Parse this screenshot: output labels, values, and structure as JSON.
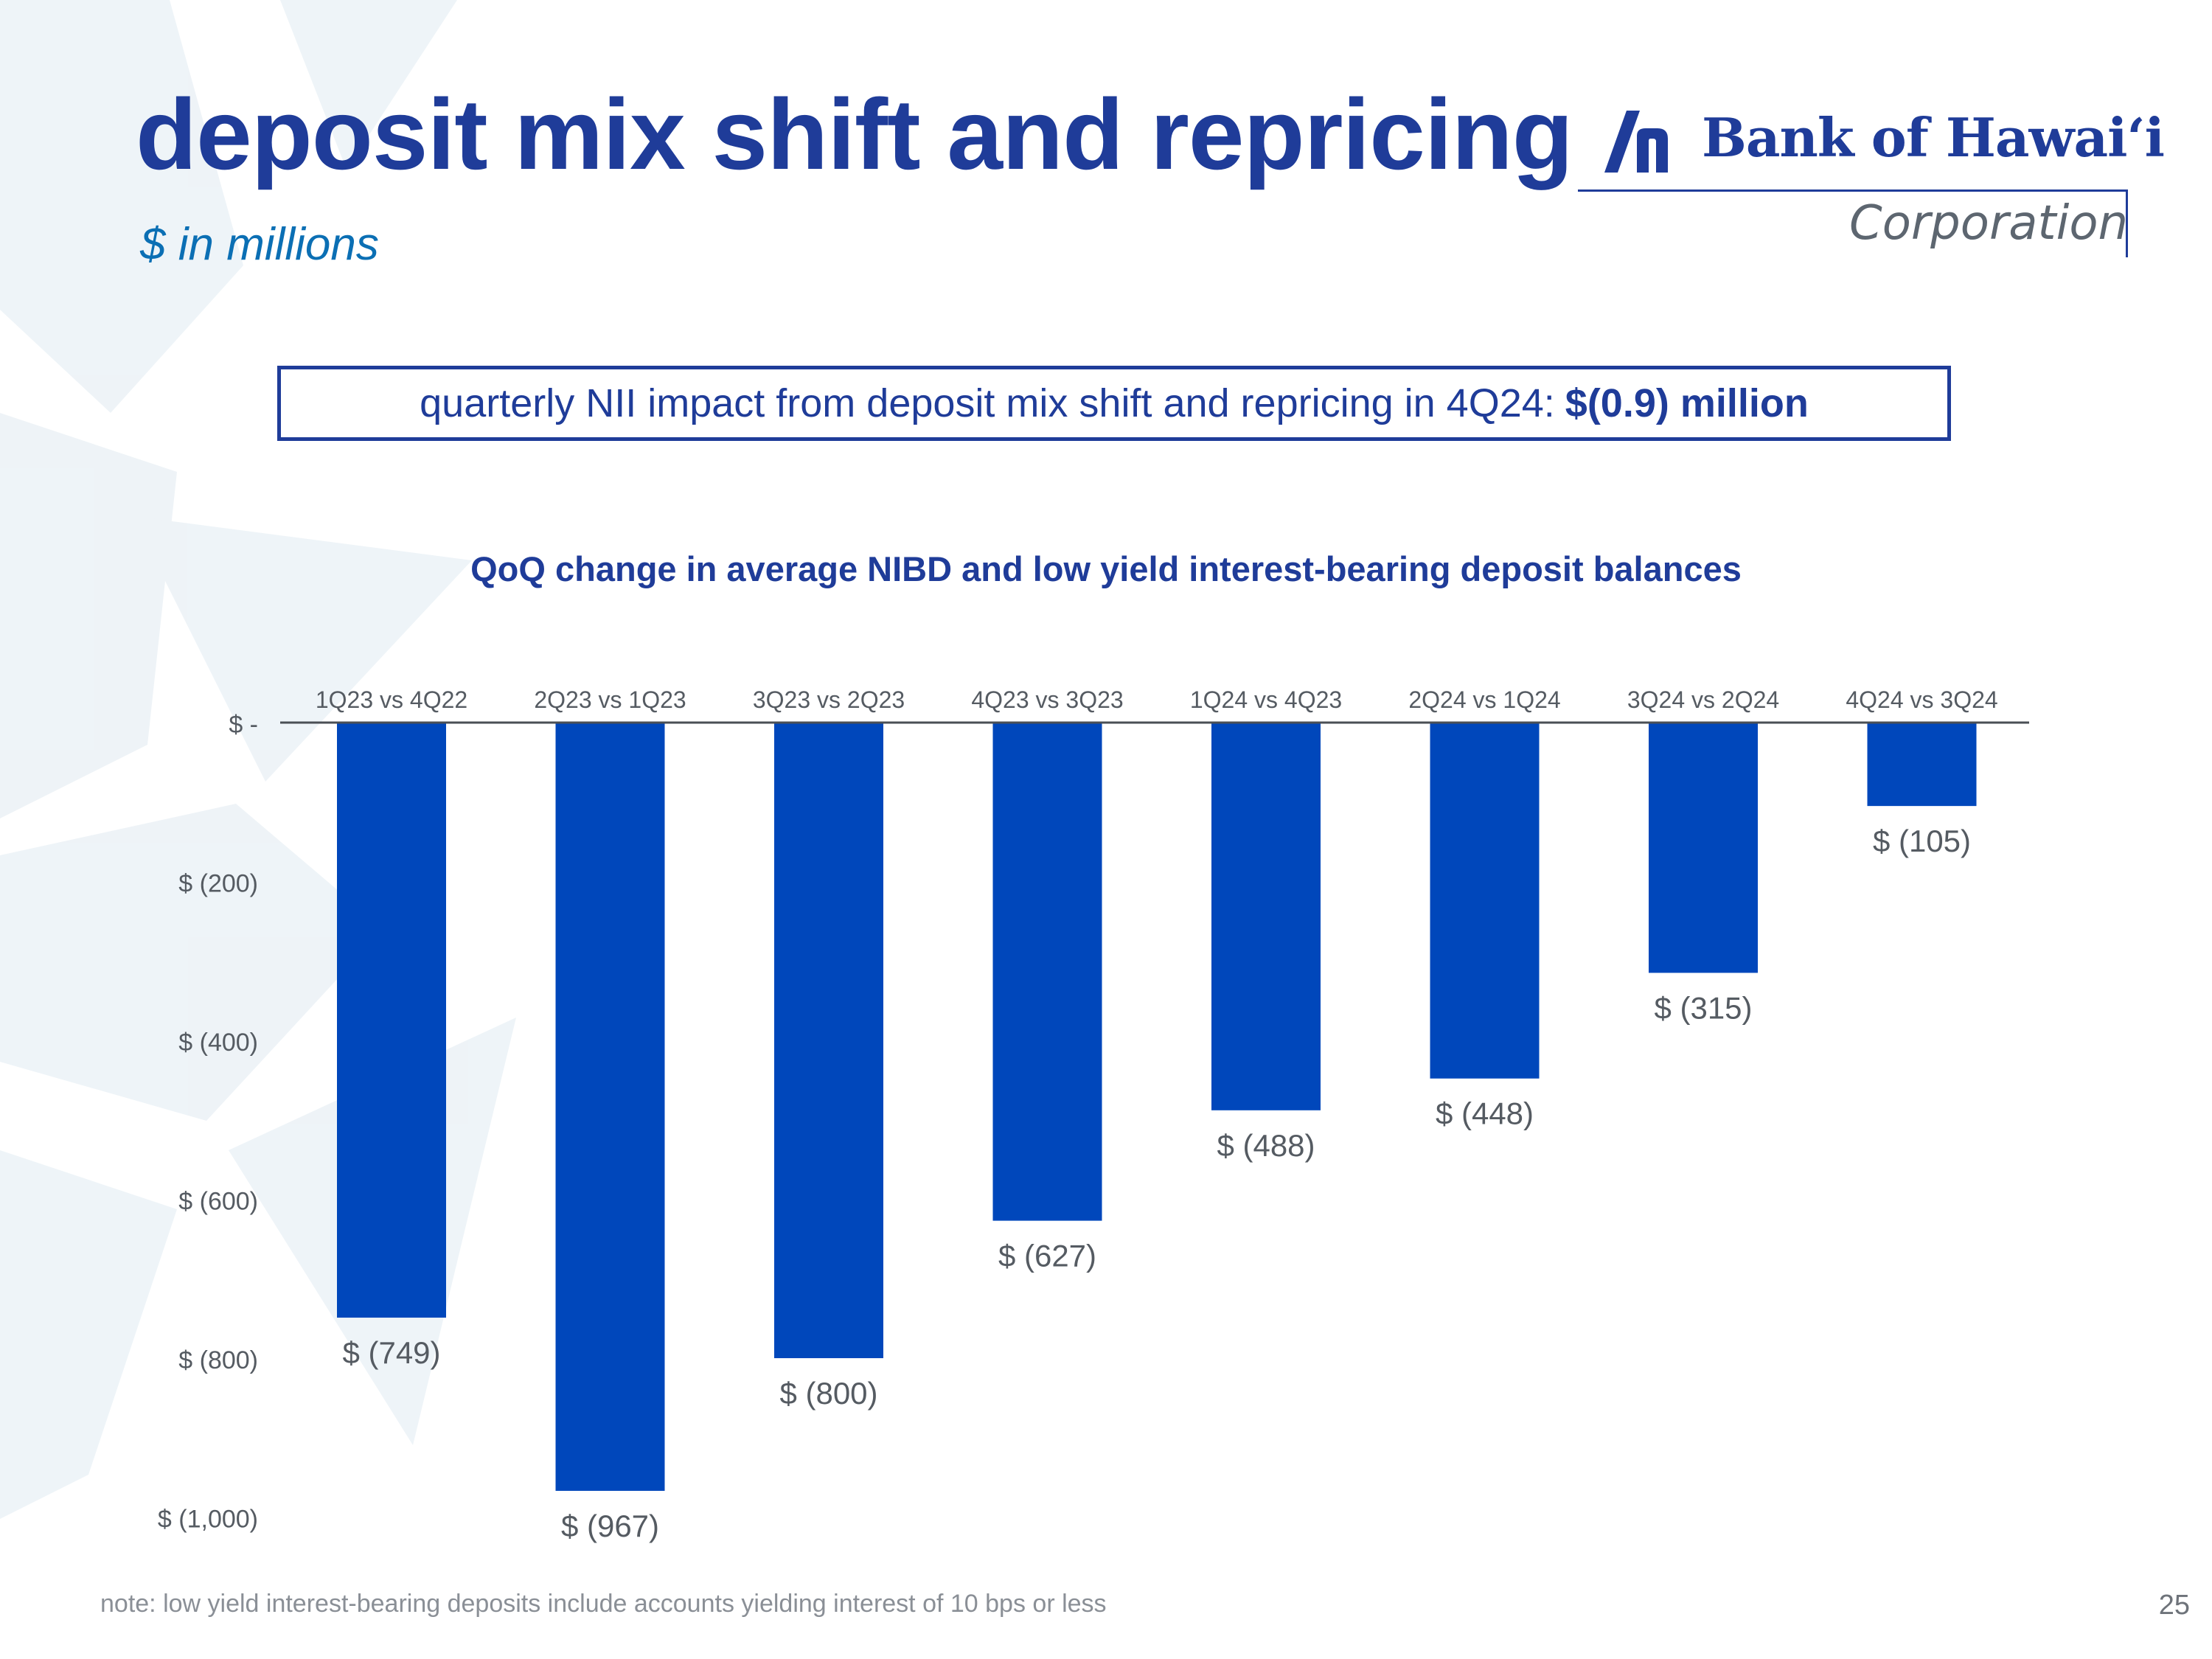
{
  "header": {
    "title": "deposit mix shift and repricing",
    "subtitle": "$ in millions"
  },
  "logo": {
    "name": "Bank of Hawai‘i",
    "sub": "Corporation"
  },
  "callout": {
    "text": "quarterly NII impact from deposit mix shift and repricing in 4Q24:",
    "value": "$(0.9) million"
  },
  "colors": {
    "title": "#1f3c99",
    "bar": "#0047bb",
    "subtitle": "#0b6fb4"
  },
  "chart_data": {
    "type": "bar",
    "title": "QoQ change in average NIBD and low yield interest-bearing deposit balances",
    "xlabel": "",
    "ylabel": "",
    "categories": [
      "1Q23 vs 4Q22",
      "2Q23 vs 1Q23",
      "3Q23 vs 2Q23",
      "4Q23 vs 3Q23",
      "1Q24 vs 4Q23",
      "2Q24 vs 1Q24",
      "3Q24 vs 2Q24",
      "4Q24 vs 3Q24"
    ],
    "values": [
      -749,
      -967,
      -800,
      -627,
      -488,
      -448,
      -315,
      -105
    ],
    "data_labels": [
      "$ (749)",
      "$ (967)",
      "$ (800)",
      "$ (627)",
      "$ (488)",
      "$ (448)",
      "$ (315)",
      "$ (105)"
    ],
    "yticks": [
      0,
      -200,
      -400,
      -600,
      -800,
      -1000
    ],
    "ytick_labels": [
      "$ -",
      "$ (200)",
      "$ (400)",
      "$ (600)",
      "$ (800)",
      "$ (1,000)"
    ],
    "ylim": [
      -1000,
      0
    ],
    "grid": false,
    "legend": false
  },
  "footer": {
    "note": "note: low yield interest-bearing deposits include accounts yielding interest of 10 bps or less",
    "page": "25"
  }
}
